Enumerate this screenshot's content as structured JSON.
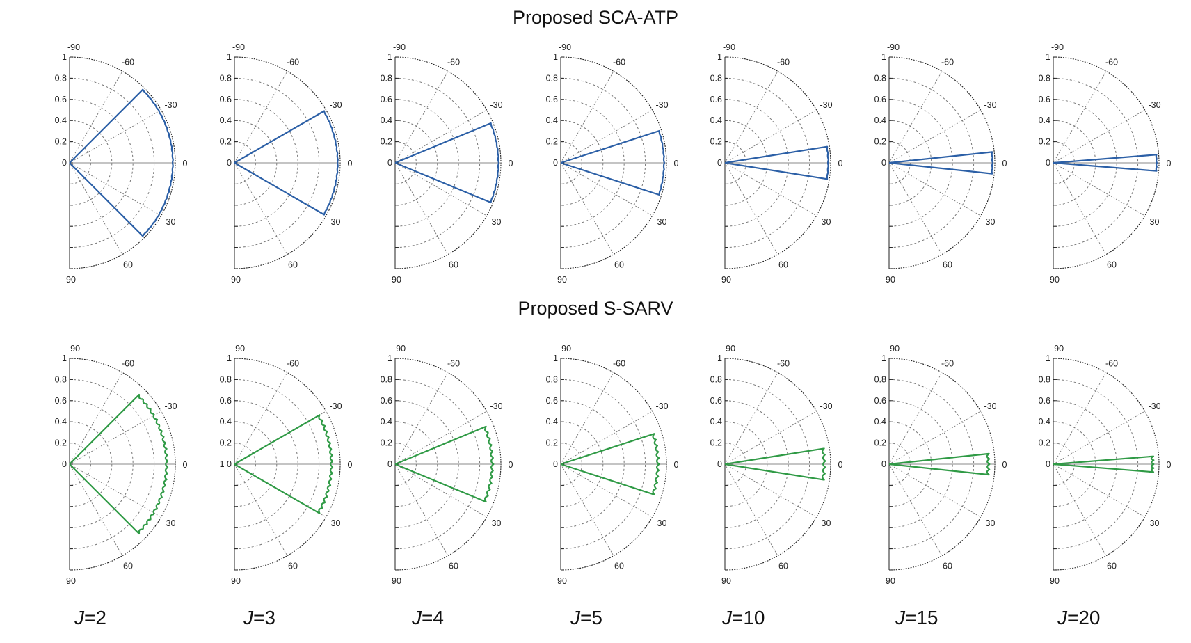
{
  "titles": {
    "top": "Proposed SCA-ATP",
    "bottom": "Proposed S-SARV"
  },
  "colors": {
    "top_series": "#2b5fa6",
    "bottom_series": "#2f9a45",
    "grid": "#777777",
    "axis": "#222222"
  },
  "columns": [
    {
      "j_symbol": "J",
      "j_value": "=2"
    },
    {
      "j_symbol": "J",
      "j_value": "=3"
    },
    {
      "j_symbol": "J",
      "j_value": "=4"
    },
    {
      "j_symbol": "J",
      "j_value": "=5"
    },
    {
      "j_symbol": "J",
      "j_value": "=10"
    },
    {
      "j_symbol": "J",
      "j_value": "=15"
    },
    {
      "j_symbol": "J",
      "j_value": "=20"
    }
  ],
  "chart_data": [
    {
      "type": "polar",
      "title": "Proposed SCA-ATP",
      "angle_range_deg": [
        -90,
        90
      ],
      "angle_ticks": [
        "-90",
        "-60",
        "-30",
        "0",
        "30",
        "60",
        "90"
      ],
      "radial_range": [
        0,
        1
      ],
      "radial_ticks": [
        "1",
        "0.8",
        "0.6",
        "0.4",
        "0.2",
        "0"
      ],
      "grid": true,
      "panels": [
        {
          "J": 2,
          "half_width_deg": 45,
          "magnitude": 0.98
        },
        {
          "J": 3,
          "half_width_deg": 30,
          "magnitude": 0.98
        },
        {
          "J": 4,
          "half_width_deg": 22.5,
          "magnitude": 0.98
        },
        {
          "J": 5,
          "half_width_deg": 18,
          "magnitude": 0.98
        },
        {
          "J": 10,
          "half_width_deg": 9,
          "magnitude": 0.98
        },
        {
          "J": 15,
          "half_width_deg": 6,
          "magnitude": 0.98
        },
        {
          "J": 20,
          "half_width_deg": 4.5,
          "magnitude": 0.98
        }
      ]
    },
    {
      "type": "polar",
      "title": "Proposed S-SARV",
      "angle_range_deg": [
        -90,
        90
      ],
      "angle_ticks": [
        "-90",
        "-60",
        "-30",
        "0",
        "30",
        "60",
        "90"
      ],
      "radial_range": [
        0,
        1
      ],
      "radial_ticks": [
        "1",
        "0.8",
        "0.6",
        "0.4",
        "0.2",
        "0"
      ],
      "grid": true,
      "panels": [
        {
          "J": 2,
          "half_width_deg": 45,
          "magnitude": 0.93,
          "zero_label": "0"
        },
        {
          "J": 3,
          "half_width_deg": 30,
          "magnitude": 0.93,
          "zero_label": "1 0"
        },
        {
          "J": 4,
          "half_width_deg": 22.5,
          "magnitude": 0.93,
          "zero_label": "0"
        },
        {
          "J": 5,
          "half_width_deg": 18,
          "magnitude": 0.93,
          "zero_label": "0"
        },
        {
          "J": 10,
          "half_width_deg": 9,
          "magnitude": 0.95,
          "zero_label": "0"
        },
        {
          "J": 15,
          "half_width_deg": 6,
          "magnitude": 0.95,
          "zero_label": "0"
        },
        {
          "J": 20,
          "half_width_deg": 4.5,
          "magnitude": 0.95,
          "zero_label": "0"
        }
      ]
    }
  ]
}
